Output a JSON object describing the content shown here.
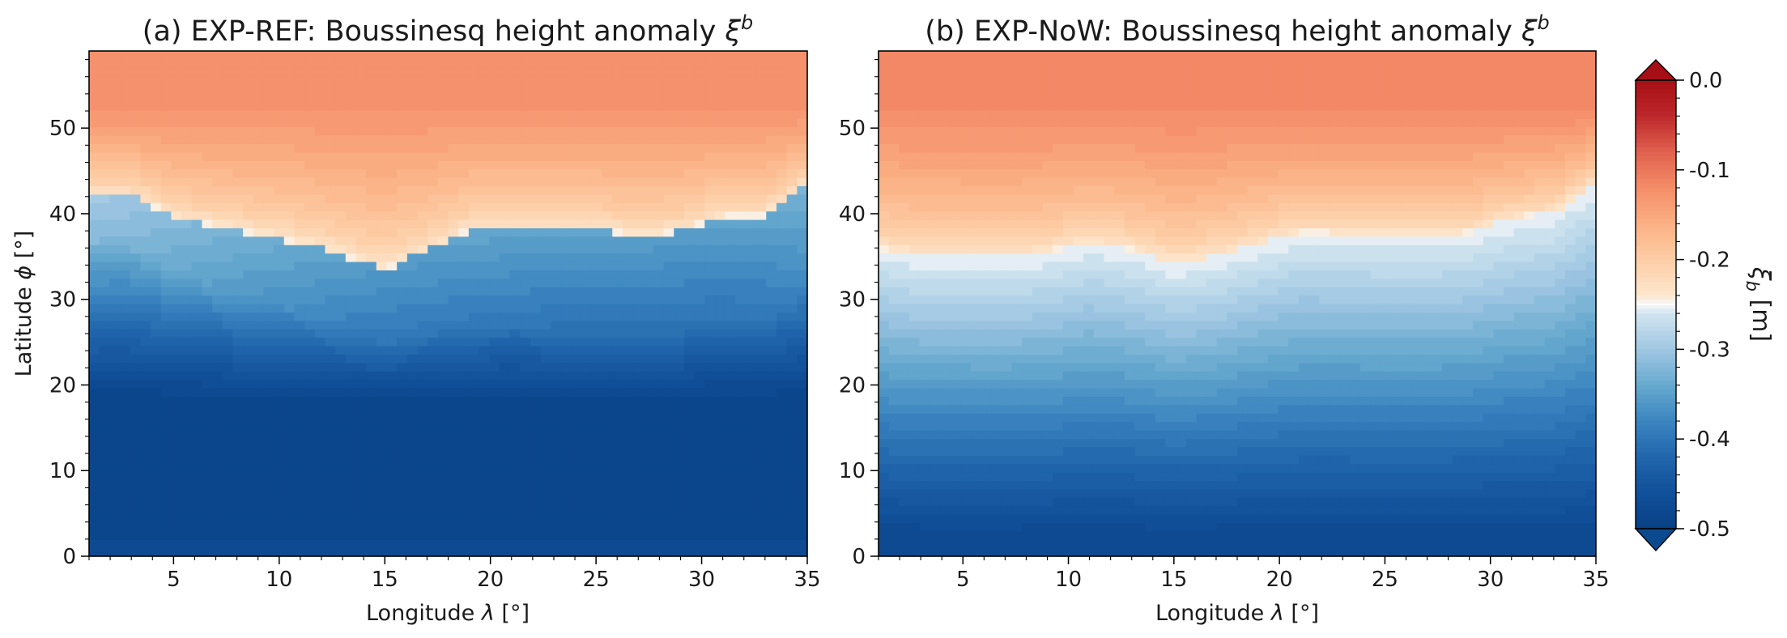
{
  "chart_data": [
    {
      "type": "heatmap",
      "panel": "a",
      "title_prefix": "(a)  EXP-REF: Boussinesq height anomaly ",
      "title_symbol": "ξ",
      "title_superscript": "b",
      "xlabel_prefix": "Longitude ",
      "xlabel_symbol": "λ",
      "xlabel_suffix": " [°]",
      "ylabel_prefix": "Latitude ",
      "ylabel_symbol": "ϕ",
      "ylabel_suffix": " [°]",
      "xlim": [
        1,
        35
      ],
      "ylim": [
        0,
        59
      ],
      "x_ticks": [
        5,
        10,
        15,
        20,
        25,
        30,
        35
      ],
      "y_ticks": [
        0,
        10,
        20,
        30,
        40,
        50
      ],
      "x_tick_labels": [
        "5",
        "10",
        "15",
        "20",
        "25",
        "30",
        "35"
      ],
      "y_tick_labels": [
        "0",
        "10",
        "20",
        "30",
        "40",
        "50"
      ],
      "contour_levels_step": 0.01,
      "field_zero_line_lat": {
        "lon": [
          1,
          3,
          5,
          7,
          9,
          11,
          13,
          15,
          17,
          19,
          21,
          23,
          25,
          27,
          29,
          31,
          33,
          35
        ],
        "lat": [
          42.0,
          42.2,
          39.6,
          38.6,
          37.6,
          36.6,
          35.2,
          33.5,
          35.7,
          38.1,
          38.3,
          38.1,
          38.1,
          37.4,
          37.9,
          39.8,
          39.8,
          43.6
        ]
      },
      "field_value_at_top": -0.13,
      "field_value_min": -0.49,
      "deep_core": {
        "lon": 31,
        "lat": 10,
        "value": -0.49
      }
    },
    {
      "type": "heatmap",
      "panel": "b",
      "title_prefix": "(b)  EXP-NoW: Boussinesq height anomaly ",
      "title_symbol": "ξ",
      "title_superscript": "b",
      "xlabel_prefix": "Longitude ",
      "xlabel_symbol": "λ",
      "xlabel_suffix": " [°]",
      "xlim": [
        1,
        35
      ],
      "ylim": [
        0,
        59
      ],
      "x_ticks": [
        5,
        10,
        15,
        20,
        25,
        30,
        35
      ],
      "y_ticks": [
        0,
        10,
        20,
        30,
        40,
        50
      ],
      "x_tick_labels": [
        "5",
        "10",
        "15",
        "20",
        "25",
        "30",
        "35"
      ],
      "y_tick_labels": [
        "0",
        "10",
        "20",
        "30",
        "40",
        "50"
      ],
      "contour_levels_step": 0.01,
      "field_zero_line_lat": {
        "lon": [
          1,
          3,
          5,
          7,
          9,
          11,
          13,
          15,
          17,
          19,
          21,
          23,
          25,
          27,
          29,
          31,
          33,
          35
        ],
        "lat": [
          36.0,
          35.1,
          35.1,
          34.9,
          35.5,
          36.7,
          35.8,
          34.2,
          35.0,
          36.5,
          37.8,
          37.7,
          37.5,
          37.5,
          37.8,
          39.5,
          40.1,
          43.8
        ]
      },
      "field_value_at_top": -0.12,
      "field_value_min": -0.48
    }
  ],
  "colorbar": {
    "label_symbol": "ξ",
    "label_superscript": "b",
    "label_unit": " [m]",
    "vmin": -0.5,
    "vmax": 0.0,
    "extend": "both",
    "colormap": "RdBu_r",
    "center": -0.25,
    "ticks": [
      0.0,
      -0.1,
      -0.2,
      -0.3,
      -0.4,
      -0.5
    ],
    "tick_labels": [
      "0.0",
      "-0.1",
      "-0.2",
      "-0.3",
      "-0.4",
      "-0.5"
    ],
    "minor_tick_step": 0.02
  },
  "colors": {
    "deep_blue": "#0b4a8f",
    "light_blue": "#dae6f2",
    "light_orange": "#fde3c3",
    "dark_red": "#a50f15"
  }
}
